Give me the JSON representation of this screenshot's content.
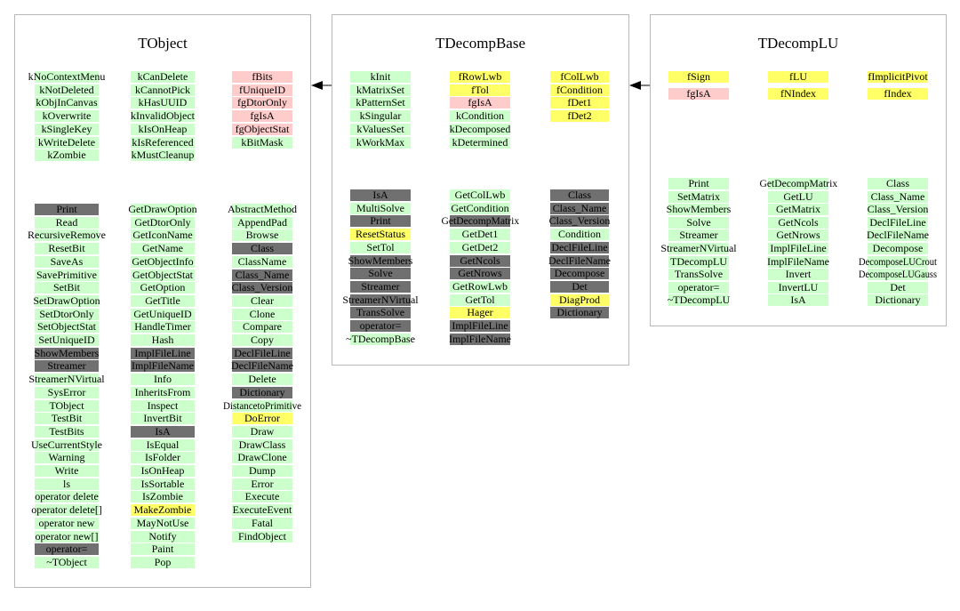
{
  "colors": {
    "method": "#ccffcc",
    "inherited": "#707070",
    "private": "#ffcccc",
    "overridden": "#ffff66",
    "border": "#b8b8b8"
  },
  "classes": [
    {
      "name": "TObject",
      "groups": [
        [
          [
            [
              "kNoContextMenu",
              "g"
            ],
            [
              "kNotDeleted",
              "g"
            ],
            [
              "kObjInCanvas",
              "g"
            ],
            [
              "kOverwrite",
              "g"
            ],
            [
              "kSingleKey",
              "g"
            ],
            [
              "kWriteDelete",
              "g"
            ],
            [
              "kZombie",
              "g"
            ]
          ],
          [
            [
              "kCanDelete",
              "g"
            ],
            [
              "kCannotPick",
              "g"
            ],
            [
              "kHasUUID",
              "g"
            ],
            [
              "kInvalidObject",
              "g"
            ],
            [
              "kIsOnHeap",
              "g"
            ],
            [
              "kIsReferenced",
              "g"
            ],
            [
              "kMustCleanup",
              "g"
            ]
          ],
          [
            [
              "fBits",
              "p"
            ],
            [
              "fUniqueID",
              "p"
            ],
            [
              "fgDtorOnly",
              "p"
            ],
            [
              "fgIsA",
              "p"
            ],
            [
              "fgObjectStat",
              "p"
            ],
            [
              "kBitMask",
              "g"
            ]
          ]
        ],
        [
          [
            [
              "Print",
              "d"
            ],
            [
              "Read",
              "g"
            ],
            [
              "RecursiveRemove",
              "g"
            ],
            [
              "ResetBit",
              "g"
            ],
            [
              "SaveAs",
              "g"
            ],
            [
              "SavePrimitive",
              "g"
            ],
            [
              "SetBit",
              "g"
            ],
            [
              "SetDrawOption",
              "g"
            ],
            [
              "SetDtorOnly",
              "g"
            ],
            [
              "SetObjectStat",
              "g"
            ],
            [
              "SetUniqueID",
              "g"
            ],
            [
              "ShowMembers",
              "d"
            ],
            [
              "Streamer",
              "d"
            ],
            [
              "StreamerNVirtual",
              "g"
            ],
            [
              "SysError",
              "g"
            ],
            [
              "TObject",
              "g"
            ],
            [
              "TestBit",
              "g"
            ],
            [
              "TestBits",
              "g"
            ],
            [
              "UseCurrentStyle",
              "g"
            ],
            [
              "Warning",
              "g"
            ],
            [
              "Write",
              "g"
            ],
            [
              "ls",
              "g"
            ],
            [
              "operator delete",
              "g"
            ],
            [
              "operator delete[]",
              "g"
            ],
            [
              "operator new",
              "g"
            ],
            [
              "operator new[]",
              "g"
            ],
            [
              "operator=",
              "d"
            ],
            [
              "~TObject",
              "g"
            ]
          ],
          [
            [
              "GetDrawOption",
              "g"
            ],
            [
              "GetDtorOnly",
              "g"
            ],
            [
              "GetIconName",
              "g"
            ],
            [
              "GetName",
              "g"
            ],
            [
              "GetObjectInfo",
              "g"
            ],
            [
              "GetObjectStat",
              "g"
            ],
            [
              "GetOption",
              "g"
            ],
            [
              "GetTitle",
              "g"
            ],
            [
              "GetUniqueID",
              "g"
            ],
            [
              "HandleTimer",
              "g"
            ],
            [
              "Hash",
              "g"
            ],
            [
              "ImplFileLine",
              "d"
            ],
            [
              "ImplFileName",
              "d"
            ],
            [
              "Info",
              "g"
            ],
            [
              "InheritsFrom",
              "g"
            ],
            [
              "Inspect",
              "g"
            ],
            [
              "InvertBit",
              "g"
            ],
            [
              "IsA",
              "d"
            ],
            [
              "IsEqual",
              "g"
            ],
            [
              "IsFolder",
              "g"
            ],
            [
              "IsOnHeap",
              "g"
            ],
            [
              "IsSortable",
              "g"
            ],
            [
              "IsZombie",
              "g"
            ],
            [
              "MakeZombie",
              "y"
            ],
            [
              "MayNotUse",
              "g"
            ],
            [
              "Notify",
              "g"
            ],
            [
              "Paint",
              "g"
            ],
            [
              "Pop",
              "g"
            ]
          ],
          [
            [
              "AbstractMethod",
              "g"
            ],
            [
              "AppendPad",
              "g"
            ],
            [
              "Browse",
              "g"
            ],
            [
              "Class",
              "d"
            ],
            [
              "ClassName",
              "g"
            ],
            [
              "Class_Name",
              "d"
            ],
            [
              "Class_Version",
              "d"
            ],
            [
              "Clear",
              "g"
            ],
            [
              "Clone",
              "g"
            ],
            [
              "Compare",
              "g"
            ],
            [
              "Copy",
              "g"
            ],
            [
              "DeclFileLine",
              "d"
            ],
            [
              "DeclFileName",
              "d"
            ],
            [
              "Delete",
              "g"
            ],
            [
              "Dictionary",
              "d"
            ],
            [
              "DistancetoPrimitive",
              "g"
            ],
            [
              "DoError",
              "y"
            ],
            [
              "Draw",
              "g"
            ],
            [
              "DrawClass",
              "g"
            ],
            [
              "DrawClone",
              "g"
            ],
            [
              "Dump",
              "g"
            ],
            [
              "Error",
              "g"
            ],
            [
              "Execute",
              "g"
            ],
            [
              "ExecuteEvent",
              "g"
            ],
            [
              "Fatal",
              "g"
            ],
            [
              "FindObject",
              "g"
            ]
          ]
        ]
      ]
    },
    {
      "name": "TDecompBase",
      "groups": [
        [
          [
            [
              "kInit",
              "g"
            ],
            [
              "kMatrixSet",
              "g"
            ],
            [
              "kPatternSet",
              "g"
            ],
            [
              "kSingular",
              "g"
            ],
            [
              "kValuesSet",
              "g"
            ],
            [
              "kWorkMax",
              "g"
            ]
          ],
          [
            [
              "fRowLwb",
              "y"
            ],
            [
              "fTol",
              "y"
            ],
            [
              "fgIsA",
              "p"
            ],
            [
              "kCondition",
              "g"
            ],
            [
              "kDecomposed",
              "g"
            ],
            [
              "kDetermined",
              "g"
            ]
          ],
          [
            [
              "fColLwb",
              "y"
            ],
            [
              "fCondition",
              "y"
            ],
            [
              "fDet1",
              "y"
            ],
            [
              "fDet2",
              "y"
            ]
          ]
        ],
        [
          [
            [
              "IsA",
              "d"
            ],
            [
              "MultiSolve",
              "g"
            ],
            [
              "Print",
              "d"
            ],
            [
              "ResetStatus",
              "y"
            ],
            [
              "SetTol",
              "g"
            ],
            [
              "ShowMembers",
              "d"
            ],
            [
              "Solve",
              "d"
            ],
            [
              "Streamer",
              "d"
            ],
            [
              "StreamerNVirtual",
              "d"
            ],
            [
              "TransSolve",
              "d"
            ],
            [
              "operator=",
              "d"
            ],
            [
              "~TDecompBase",
              "g"
            ]
          ],
          [
            [
              "GetColLwb",
              "g"
            ],
            [
              "GetCondition",
              "g"
            ],
            [
              "GetDecompMatrix",
              "d"
            ],
            [
              "GetDet1",
              "g"
            ],
            [
              "GetDet2",
              "g"
            ],
            [
              "GetNcols",
              "d"
            ],
            [
              "GetNrows",
              "d"
            ],
            [
              "GetRowLwb",
              "g"
            ],
            [
              "GetTol",
              "g"
            ],
            [
              "Hager",
              "y"
            ],
            [
              "ImplFileLine",
              "d"
            ],
            [
              "ImplFileName",
              "d"
            ]
          ],
          [
            [
              "Class",
              "d"
            ],
            [
              "Class_Name",
              "d"
            ],
            [
              "Class_Version",
              "d"
            ],
            [
              "Condition",
              "g"
            ],
            [
              "DeclFileLine",
              "d"
            ],
            [
              "DeclFileName",
              "d"
            ],
            [
              "Decompose",
              "d"
            ],
            [
              "Det",
              "d"
            ],
            [
              "DiagProd",
              "y"
            ],
            [
              "Dictionary",
              "d"
            ]
          ]
        ]
      ]
    },
    {
      "name": "TDecompLU",
      "groups": [
        [
          [
            [
              "fSign",
              "y"
            ],
            [
              "fgIsA",
              "p"
            ]
          ],
          [
            [
              "fLU",
              "y"
            ],
            [
              "fNIndex",
              "y"
            ]
          ],
          [
            [
              "fImplicitPivot",
              "y"
            ],
            [
              "fIndex",
              "y"
            ]
          ]
        ],
        [
          [
            [
              "Print",
              "g"
            ],
            [
              "SetMatrix",
              "g"
            ],
            [
              "ShowMembers",
              "g"
            ],
            [
              "Solve",
              "g"
            ],
            [
              "Streamer",
              "g"
            ],
            [
              "StreamerNVirtual",
              "g"
            ],
            [
              "TDecompLU",
              "g"
            ],
            [
              "TransSolve",
              "g"
            ],
            [
              "operator=",
              "g"
            ],
            [
              "~TDecompLU",
              "g"
            ]
          ],
          [
            [
              "GetDecompMatrix",
              "g"
            ],
            [
              "GetLU",
              "g"
            ],
            [
              "GetMatrix",
              "g"
            ],
            [
              "GetNcols",
              "g"
            ],
            [
              "GetNrows",
              "g"
            ],
            [
              "ImplFileLine",
              "g"
            ],
            [
              "ImplFileName",
              "g"
            ],
            [
              "Invert",
              "g"
            ],
            [
              "InvertLU",
              "g"
            ],
            [
              "IsA",
              "g"
            ]
          ],
          [
            [
              "Class",
              "g"
            ],
            [
              "Class_Name",
              "g"
            ],
            [
              "Class_Version",
              "g"
            ],
            [
              "DeclFileLine",
              "g"
            ],
            [
              "DeclFileName",
              "g"
            ],
            [
              "Decompose",
              "g"
            ],
            [
              "DecomposeLUCrout",
              "g"
            ],
            [
              "DecomposeLUGauss",
              "g"
            ],
            [
              "Det",
              "g"
            ],
            [
              "Dictionary",
              "g"
            ]
          ]
        ]
      ]
    }
  ]
}
